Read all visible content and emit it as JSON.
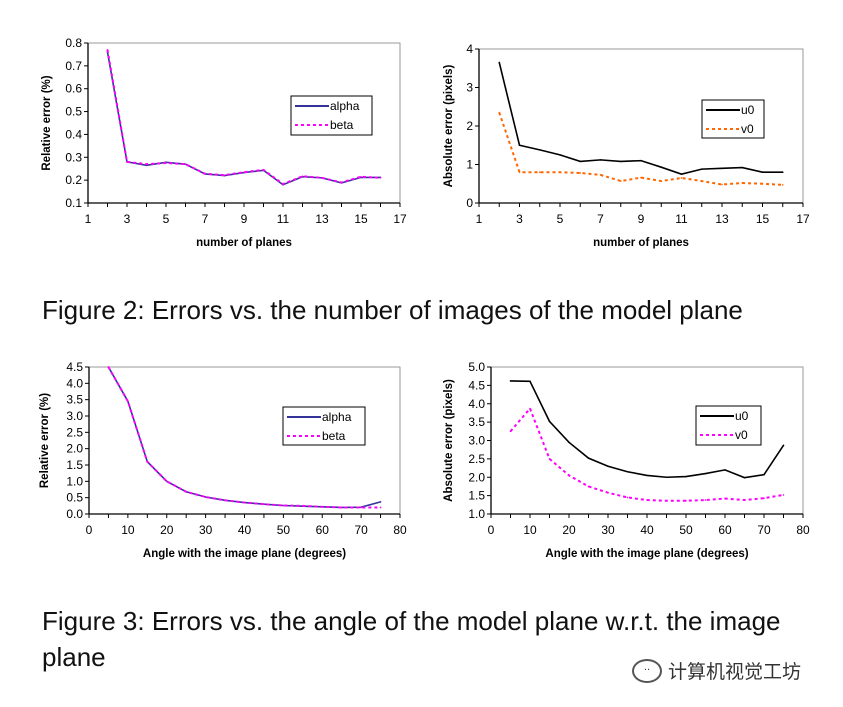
{
  "chart_data": [
    {
      "type": "line",
      "title": "",
      "xlabel": "number of planes",
      "ylabel": "Relative error (%)",
      "xlim": [
        1,
        17
      ],
      "ylim": [
        0.1,
        0.8
      ],
      "xticks": [
        "1",
        "3",
        "5",
        "7",
        "9",
        "11",
        "13",
        "15",
        "17"
      ],
      "yticks": [
        "0.1",
        "0.2",
        "0.3",
        "0.4",
        "0.5",
        "0.6",
        "0.7",
        "0.8"
      ],
      "x": [
        2,
        3,
        4,
        5,
        6,
        7,
        8,
        9,
        10,
        11,
        12,
        13,
        14,
        15,
        16
      ],
      "legend_position": "right",
      "series": [
        {
          "name": "alpha",
          "color": "#33339a",
          "style": "solid",
          "values": [
            0.76,
            0.28,
            0.265,
            0.278,
            0.27,
            0.227,
            0.22,
            0.233,
            0.243,
            0.18,
            0.215,
            0.21,
            0.188,
            0.212,
            0.212
          ]
        },
        {
          "name": "beta",
          "color": "#ff00ff",
          "style": "dotted",
          "values": [
            0.77,
            0.28,
            0.27,
            0.275,
            0.27,
            0.228,
            0.222,
            0.235,
            0.245,
            0.183,
            0.217,
            0.21,
            0.19,
            0.215,
            0.21
          ]
        }
      ]
    },
    {
      "type": "line",
      "title": "",
      "xlabel": "number of planes",
      "ylabel": "Absolute error (pixels)",
      "xlim": [
        1,
        17
      ],
      "ylim": [
        0,
        4
      ],
      "xticks": [
        "1",
        "3",
        "5",
        "7",
        "9",
        "11",
        "13",
        "15",
        "17"
      ],
      "yticks": [
        "0",
        "1",
        "2",
        "3",
        "4"
      ],
      "x": [
        2,
        3,
        4,
        5,
        6,
        7,
        8,
        9,
        10,
        11,
        12,
        13,
        14,
        15,
        16
      ],
      "legend_position": "right",
      "series": [
        {
          "name": "u0",
          "color": "#000000",
          "style": "solid",
          "values": [
            3.65,
            1.5,
            1.38,
            1.25,
            1.08,
            1.12,
            1.08,
            1.1,
            0.93,
            0.75,
            0.88,
            0.9,
            0.92,
            0.8,
            0.8
          ]
        },
        {
          "name": "v0",
          "color": "#ff6600",
          "style": "dotted",
          "values": [
            2.35,
            0.8,
            0.8,
            0.8,
            0.78,
            0.73,
            0.57,
            0.66,
            0.57,
            0.65,
            0.57,
            0.48,
            0.52,
            0.5,
            0.47
          ]
        }
      ]
    },
    {
      "type": "line",
      "title": "",
      "xlabel": "Angle with the image plane (degrees)",
      "ylabel": "Relative error (%)",
      "xlim": [
        0,
        80
      ],
      "ylim": [
        0,
        4.5
      ],
      "xticks": [
        "0",
        "10",
        "20",
        "30",
        "40",
        "50",
        "60",
        "70",
        "80"
      ],
      "yticks": [
        "0.0",
        "0.5",
        "1.0",
        "1.5",
        "2.0",
        "2.5",
        "3.0",
        "3.5",
        "4.0",
        "4.5"
      ],
      "x": [
        5,
        10,
        15,
        20,
        25,
        30,
        35,
        40,
        45,
        50,
        55,
        60,
        65,
        70,
        75
      ],
      "legend_position": "right",
      "series": [
        {
          "name": "alpha",
          "color": "#33339a",
          "style": "solid",
          "values": [
            4.5,
            3.45,
            1.6,
            1.0,
            0.68,
            0.52,
            0.42,
            0.35,
            0.3,
            0.26,
            0.24,
            0.22,
            0.2,
            0.21,
            0.37
          ]
        },
        {
          "name": "beta",
          "color": "#ff00ff",
          "style": "dotted",
          "values": [
            4.5,
            3.45,
            1.6,
            1.0,
            0.68,
            0.52,
            0.42,
            0.35,
            0.3,
            0.26,
            0.25,
            0.22,
            0.2,
            0.2,
            0.2
          ]
        }
      ]
    },
    {
      "type": "line",
      "title": "",
      "xlabel": "Angle with the image plane (degrees)",
      "ylabel": "Absolute error (pixels)",
      "xlim": [
        0,
        80
      ],
      "ylim": [
        1,
        5
      ],
      "xticks": [
        "0",
        "10",
        "20",
        "30",
        "40",
        "50",
        "60",
        "70",
        "80"
      ],
      "yticks": [
        "1.0",
        "1.5",
        "2.0",
        "2.5",
        "3.0",
        "3.5",
        "4.0",
        "4.5",
        "5.0"
      ],
      "x": [
        5,
        10,
        15,
        20,
        25,
        30,
        35,
        40,
        45,
        50,
        55,
        60,
        65,
        70,
        75
      ],
      "legend_position": "right",
      "series": [
        {
          "name": "u0",
          "color": "#000000",
          "style": "solid",
          "values": [
            4.62,
            4.61,
            3.52,
            2.95,
            2.52,
            2.3,
            2.15,
            2.05,
            2.0,
            2.02,
            2.1,
            2.2,
            1.99,
            2.07,
            2.87
          ]
        },
        {
          "name": "v0",
          "color": "#ff00ff",
          "style": "dotted",
          "values": [
            3.25,
            3.87,
            2.5,
            2.05,
            1.75,
            1.58,
            1.45,
            1.38,
            1.36,
            1.36,
            1.38,
            1.42,
            1.38,
            1.43,
            1.52
          ]
        }
      ]
    }
  ],
  "captions": {
    "figure2": "Figure 2: Errors vs. the number of images of the model plane",
    "figure3": "Figure 3: Errors vs.  the angle of the model plane w.r.t.  the image plane"
  },
  "watermark": "计算机视觉工坊"
}
